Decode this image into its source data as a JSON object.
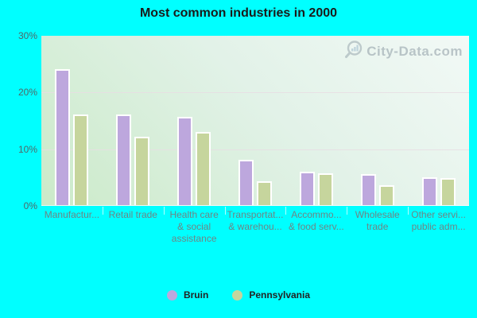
{
  "title": "Most common industries in 2000",
  "watermark": {
    "text": "City-Data.com"
  },
  "colors": {
    "page_bg": "#00ffff",
    "plot_gradient_light": "#f2f9f6",
    "plot_gradient_dark": "#cbeac9",
    "gridline": "#e7dde3",
    "bruin_bar": "#bda7dd",
    "pennsylvania_bar": "#c6d59d",
    "bar_border": "#ffffff",
    "title_text": "#1a1a1a",
    "y_axis_text": "#4f6868",
    "x_axis_text": "#6e8585",
    "legend_text": "#232323",
    "watermark_text": "#8d9ba4"
  },
  "chart_data": {
    "type": "bar",
    "title": "Most common industries in 2000",
    "categories": [
      "Manufactur...",
      "Retail trade",
      "Health care & social assistance",
      "Transportat... & warehou...",
      "Accommo... & food serv...",
      "Wholesale trade",
      "Other servi... public adm..."
    ],
    "category_label_lines": [
      [
        "Manufactur..."
      ],
      [
        "Retail trade"
      ],
      [
        "Health care",
        "& social",
        "assistance"
      ],
      [
        "Transportat...",
        "& warehou..."
      ],
      [
        "Accommo...",
        "& food serv..."
      ],
      [
        "Wholesale",
        "trade"
      ],
      [
        "Other servi...",
        "public adm..."
      ]
    ],
    "series": [
      {
        "name": "Bruin",
        "color": "#bda7dd",
        "values": [
          24.0,
          16.0,
          15.5,
          8.0,
          5.9,
          5.5,
          4.9
        ]
      },
      {
        "name": "Pennsylvania",
        "color": "#c6d59d",
        "values": [
          16.0,
          12.0,
          12.9,
          4.2,
          5.6,
          3.5,
          4.7
        ]
      }
    ],
    "xlabel": "",
    "ylabel": "",
    "ylim": [
      0,
      30
    ],
    "yticks": [
      {
        "value": 0,
        "label": "0%"
      },
      {
        "value": 10,
        "label": "10%"
      },
      {
        "value": 20,
        "label": "20%"
      },
      {
        "value": 30,
        "label": "30%"
      }
    ],
    "grid": true,
    "grid_values": [
      10,
      20
    ],
    "legend_position": "bottom"
  }
}
